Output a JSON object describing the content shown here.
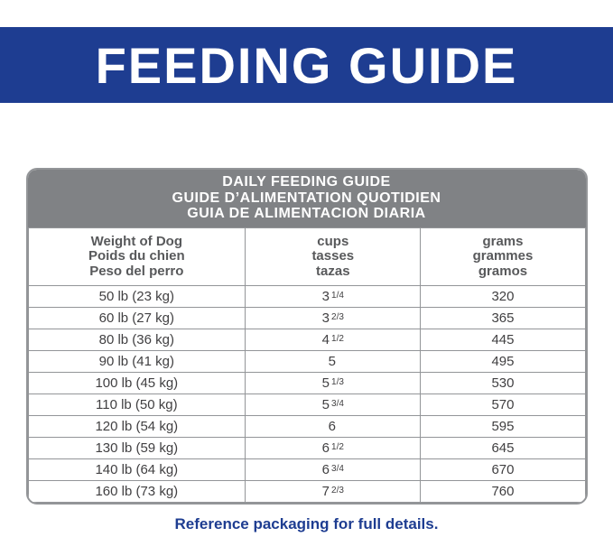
{
  "banner": {
    "title": "FEEDING GUIDE",
    "bg_color": "#1e3d91"
  },
  "table": {
    "header_lines": [
      "DAILY FEEDING GUIDE",
      "GUIDE D’ALIMENTATION QUOTIDIEN",
      "GUIA DE ALIMENTACION DIARIA"
    ],
    "columns": [
      {
        "lines": [
          "Weight of Dog",
          "Poids du chien",
          "Peso del perro"
        ]
      },
      {
        "lines": [
          "cups",
          "tasses",
          "tazas"
        ]
      },
      {
        "lines": [
          "grams",
          "grammes",
          "gramos"
        ]
      }
    ],
    "rows": [
      {
        "weight": "50 lb (23 kg)",
        "cups_whole": "3",
        "cups_frac": "1/4",
        "grams": "320"
      },
      {
        "weight": "60 lb (27 kg)",
        "cups_whole": "3",
        "cups_frac": "2/3",
        "grams": "365"
      },
      {
        "weight": "80 lb (36 kg)",
        "cups_whole": "4",
        "cups_frac": "1/2",
        "grams": "445"
      },
      {
        "weight": "90 lb (41 kg)",
        "cups_whole": "5",
        "cups_frac": "",
        "grams": "495"
      },
      {
        "weight": "100 lb (45 kg)",
        "cups_whole": "5",
        "cups_frac": "1/3",
        "grams": "530"
      },
      {
        "weight": "110 lb (50 kg)",
        "cups_whole": "5",
        "cups_frac": "3/4",
        "grams": "570"
      },
      {
        "weight": "120 lb (54 kg)",
        "cups_whole": "6",
        "cups_frac": "",
        "grams": "595"
      },
      {
        "weight": "130 lb (59 kg)",
        "cups_whole": "6",
        "cups_frac": "1/2",
        "grams": "645"
      },
      {
        "weight": "140 lb (64 kg)",
        "cups_whole": "6",
        "cups_frac": "3/4",
        "grams": "670"
      },
      {
        "weight": "160 lb (73 kg)",
        "cups_whole": "7",
        "cups_frac": "2/3",
        "grams": "760"
      }
    ]
  },
  "footer": {
    "note": "Reference packaging for full details."
  }
}
